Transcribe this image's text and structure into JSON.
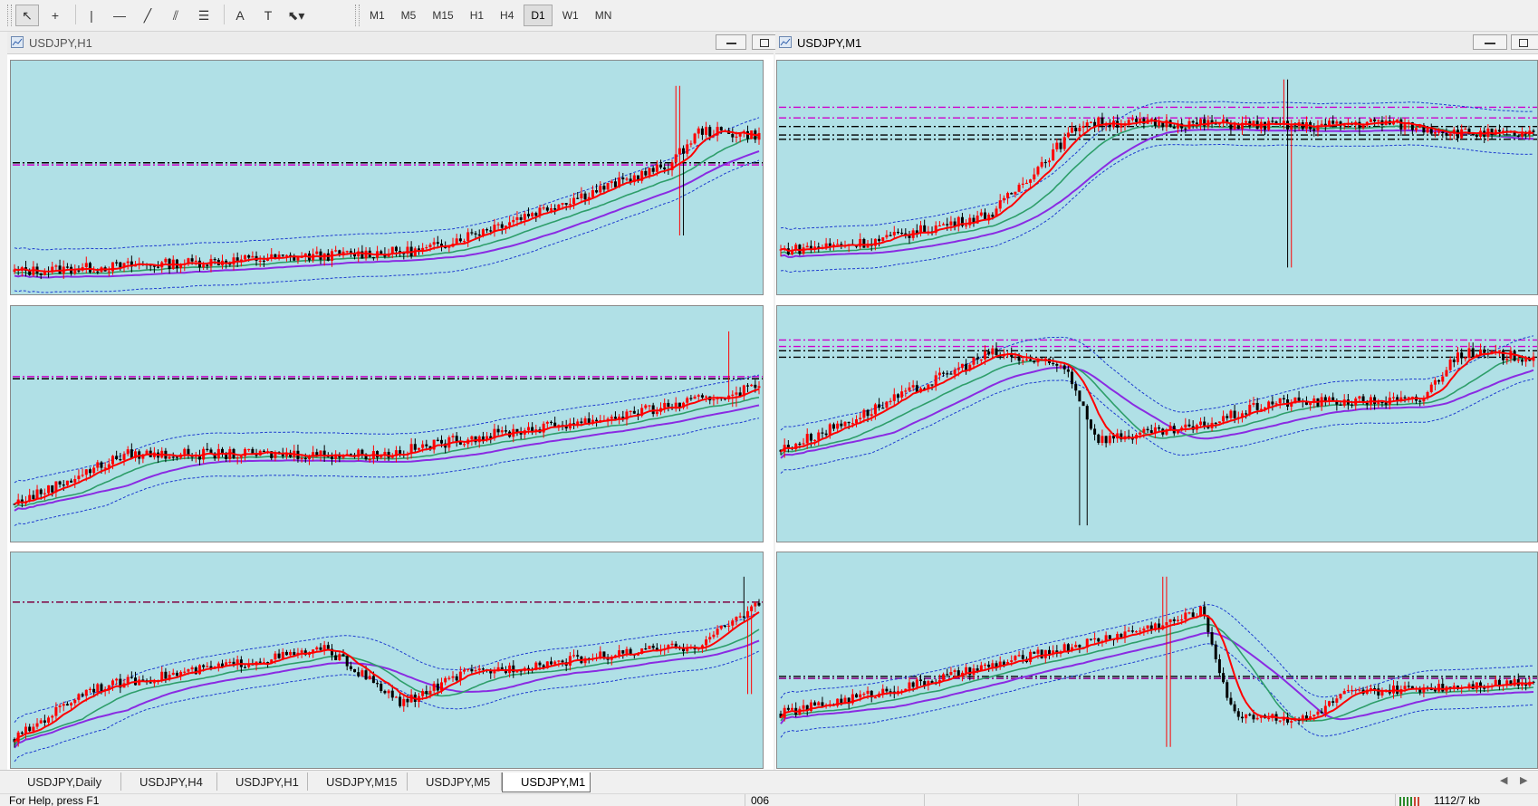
{
  "toolbar": {
    "tools": [
      {
        "icon": "cursor-arrow-icon",
        "glyph": "↖",
        "selected": true
      },
      {
        "icon": "crosshair-icon",
        "glyph": "+",
        "selected": false
      },
      {
        "icon": "vertical-line-icon",
        "glyph": "|",
        "selected": false
      },
      {
        "icon": "horizontal-line-icon",
        "glyph": "—",
        "selected": false
      },
      {
        "icon": "trendline-icon",
        "glyph": "╱",
        "selected": false
      },
      {
        "icon": "equidistant-channel-icon",
        "glyph": "⫽",
        "selected": false
      },
      {
        "icon": "fibonacci-retracement-icon",
        "glyph": "☰",
        "selected": false
      },
      {
        "icon": "text-icon",
        "glyph": "A",
        "selected": false
      },
      {
        "icon": "text-label-icon",
        "glyph": "T",
        "selected": false
      },
      {
        "icon": "arrows-dropdown-icon",
        "glyph": "⬉▾",
        "selected": false
      }
    ],
    "timeframes": [
      "M1",
      "M5",
      "M15",
      "H1",
      "H4",
      "D1",
      "W1",
      "MN"
    ],
    "selected_timeframe": "D1"
  },
  "windows": [
    {
      "title": "USDJPY,H1",
      "active": false
    },
    {
      "title": "USDJPY,M1",
      "active": true
    }
  ],
  "tabs": [
    "USDJPY,Daily",
    "USDJPY,H4",
    "USDJPY,H1",
    "USDJPY,M15",
    "USDJPY,M5",
    "USDJPY,M1"
  ],
  "active_tab": "USDJPY,M1",
  "status": {
    "help": "For Help, press F1",
    "profile": "006",
    "traffic": "1112/7 kb"
  },
  "colors": {
    "plot_bg": "#b0e0e6",
    "bull": "#ff0000",
    "bear": "#000000",
    "ma_fast": "#ff0000",
    "ma_mid": "#2e9e6a",
    "ma_slow": "#8a2be2",
    "band": "#1e3ccf",
    "level_black": "#000000",
    "level_magenta": "#cc00cc"
  },
  "panels": [
    {
      "id": "h1-a",
      "ranges": [
        [
          0,
          0.08
        ],
        [
          0.55,
          0.18
        ],
        [
          0.88,
          0.58
        ],
        [
          0.92,
          0.74
        ],
        [
          1,
          0.72
        ]
      ],
      "spike": [
        0.89,
        0.95
      ],
      "spike_low": 0.25,
      "levels": [
        {
          "y": 0.58,
          "color": "#cc00cc",
          "style": "dashdot"
        },
        {
          "y": 0.59,
          "color": "#000000",
          "style": "dashdot"
        }
      ]
    },
    {
      "id": "m1-a",
      "ranges": [
        [
          0,
          0.18
        ],
        [
          0.12,
          0.22
        ],
        [
          0.28,
          0.35
        ],
        [
          0.4,
          0.78
        ],
        [
          0.6,
          0.77
        ],
        [
          0.7,
          0.76
        ],
        [
          0.8,
          0.78
        ],
        [
          0.9,
          0.73
        ],
        [
          1,
          0.72
        ]
      ],
      "spike": [
        0.67,
        0.98
      ],
      "spike_low": 0.1,
      "levels": [
        {
          "y": 0.85,
          "color": "#cc00cc",
          "style": "dashdot"
        },
        {
          "y": 0.8,
          "color": "#cc00cc",
          "style": "dashdot"
        },
        {
          "y": 0.76,
          "color": "#000000",
          "style": "dashdot"
        },
        {
          "y": 0.72,
          "color": "#000000",
          "style": "dashdot"
        },
        {
          "y": 0.7,
          "color": "#000000",
          "style": "dashdot"
        }
      ]
    },
    {
      "id": "h1-b",
      "ranges": [
        [
          0,
          0.15
        ],
        [
          0.15,
          0.38
        ],
        [
          0.5,
          0.38
        ],
        [
          0.6,
          0.45
        ],
        [
          0.8,
          0.55
        ],
        [
          0.95,
          0.65
        ],
        [
          1,
          0.7
        ]
      ],
      "spike": [
        0.96,
        0.95
      ],
      "spike_low": 0.6,
      "levels": [
        {
          "y": 0.74,
          "color": "#cc00cc",
          "style": "dashdot"
        },
        {
          "y": 0.73,
          "color": "#000000",
          "style": "dashdot"
        }
      ]
    },
    {
      "id": "m1-b",
      "ranges": [
        [
          0,
          0.4
        ],
        [
          0.1,
          0.55
        ],
        [
          0.28,
          0.85
        ],
        [
          0.38,
          0.78
        ],
        [
          0.42,
          0.45
        ],
        [
          0.55,
          0.5
        ],
        [
          0.65,
          0.62
        ],
        [
          0.85,
          0.63
        ],
        [
          0.9,
          0.85
        ],
        [
          1,
          0.83
        ]
      ],
      "spike": [
        0.4,
        0.05
      ],
      "spike_low": 0.05,
      "levels": [
        {
          "y": 0.91,
          "color": "#cc00cc",
          "style": "dashdot"
        },
        {
          "y": 0.88,
          "color": "#cc00cc",
          "style": "dashdot"
        },
        {
          "y": 0.86,
          "color": "#000000",
          "style": "dashdot"
        },
        {
          "y": 0.83,
          "color": "#000000",
          "style": "dashdot"
        }
      ]
    },
    {
      "id": "h1-c",
      "ranges": [
        [
          0,
          0.12
        ],
        [
          0.1,
          0.38
        ],
        [
          0.42,
          0.58
        ],
        [
          0.52,
          0.3
        ],
        [
          0.6,
          0.45
        ],
        [
          0.8,
          0.55
        ],
        [
          0.92,
          0.6
        ],
        [
          1,
          0.82
        ]
      ],
      "spike": [
        0.98,
        0.95
      ],
      "spike_low": 0.35,
      "levels": [
        {
          "y": 0.82,
          "color": "#800040",
          "style": "dashdot"
        }
      ]
    },
    {
      "id": "m1-c",
      "ranges": [
        [
          0,
          0.25
        ],
        [
          0.18,
          0.4
        ],
        [
          0.52,
          0.72
        ],
        [
          0.56,
          0.78
        ],
        [
          0.6,
          0.25
        ],
        [
          0.7,
          0.22
        ],
        [
          0.75,
          0.35
        ],
        [
          0.85,
          0.38
        ],
        [
          1,
          0.42
        ]
      ],
      "spike": [
        0.51,
        0.95
      ],
      "spike_low": 0.08,
      "levels": [
        {
          "y": 0.44,
          "color": "#000000",
          "style": "dashdot"
        },
        {
          "y": 0.43,
          "color": "#8b008b",
          "style": "dashdot"
        }
      ]
    }
  ]
}
